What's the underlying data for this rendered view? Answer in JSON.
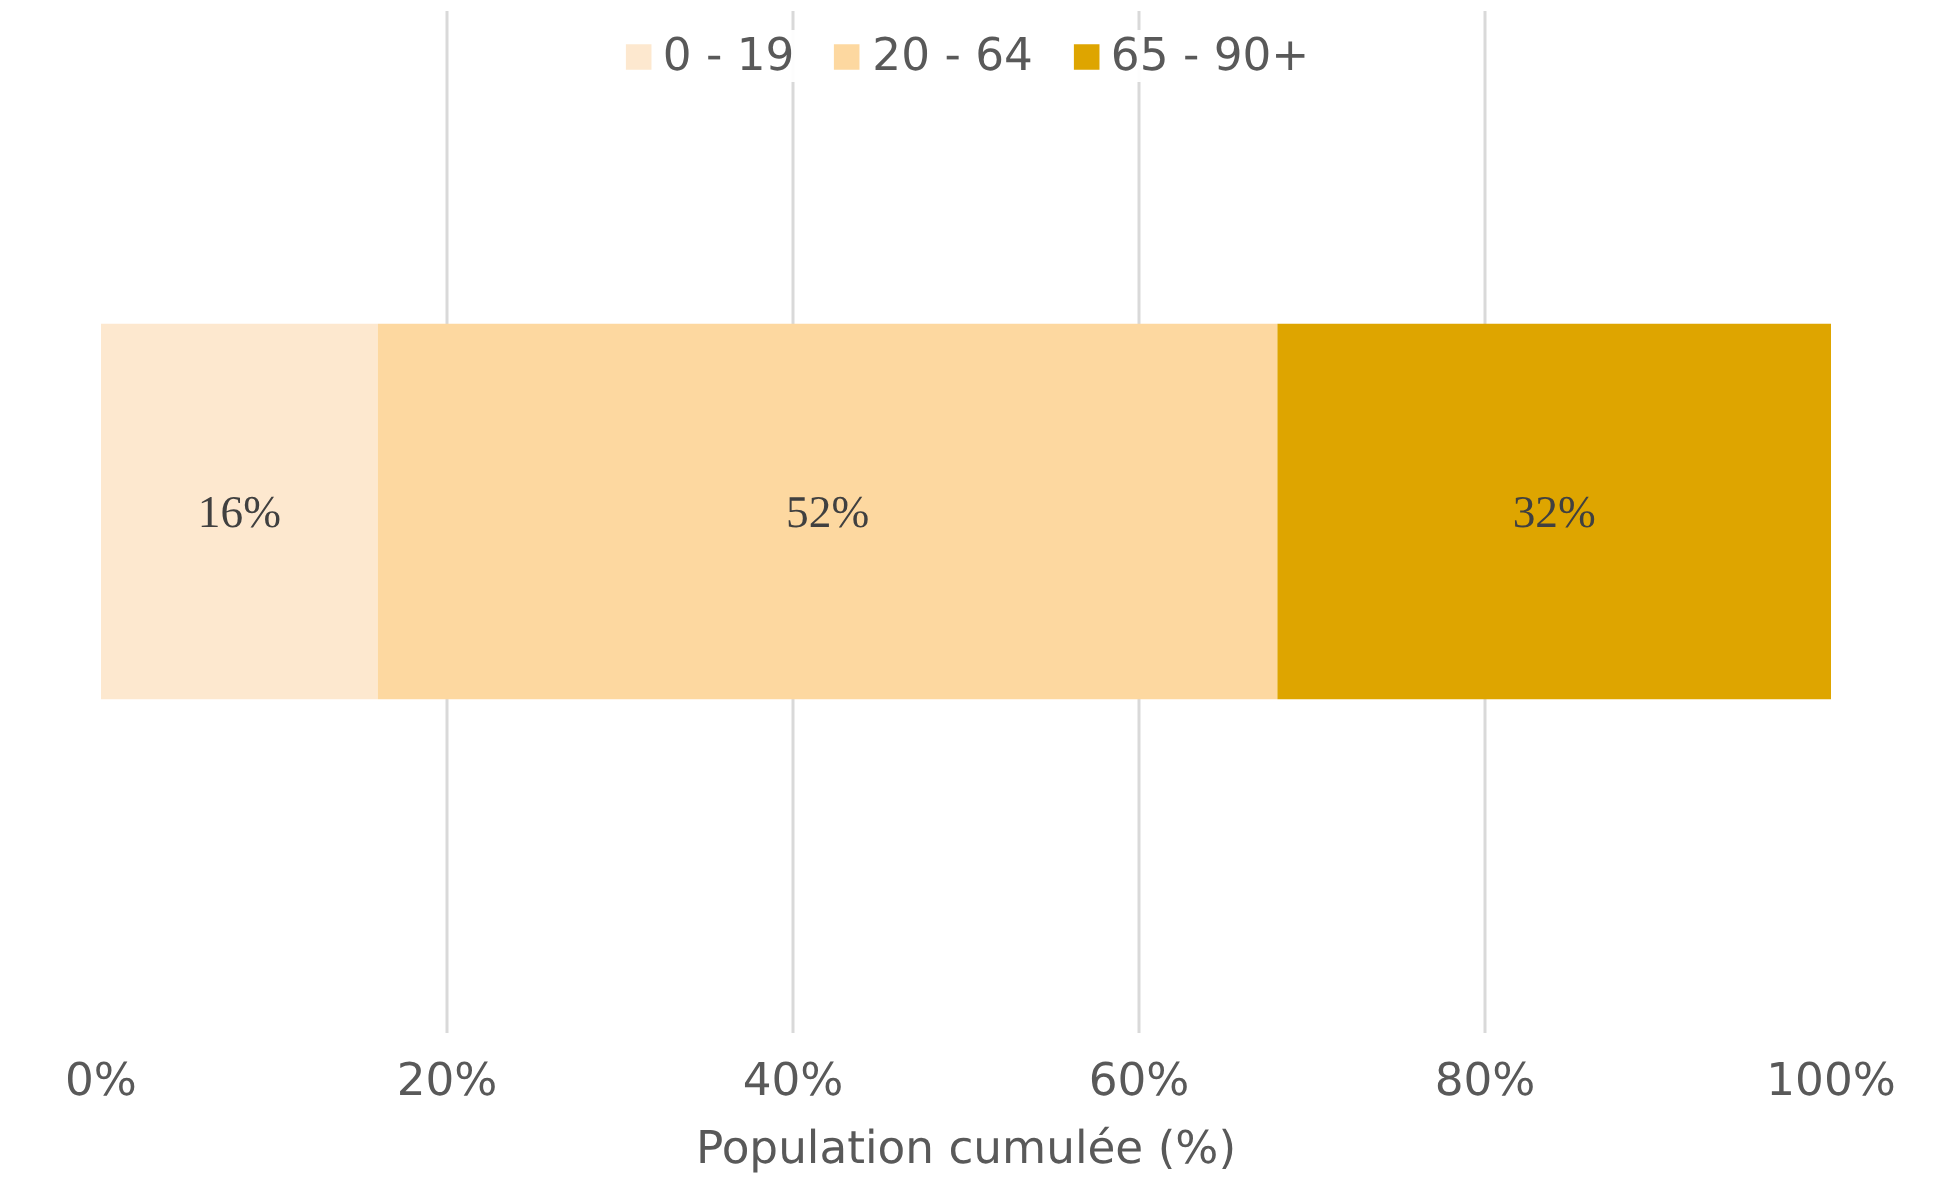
{
  "chart_data": {
    "type": "bar",
    "orientation": "horizontal",
    "stacked": true,
    "categories": [
      null
    ],
    "xlabel": "Population cumulée (%)",
    "series": [
      {
        "name": "0 - 19",
        "color": "#fde8cf",
        "values": [
          16
        ],
        "value_labels": [
          "16%"
        ]
      },
      {
        "name": "20 - 64",
        "color": "#fdd8a0",
        "values": [
          52
        ],
        "value_labels": [
          "52%"
        ]
      },
      {
        "name": "65 - 90+",
        "color": "#dea500",
        "values": [
          32
        ],
        "value_labels": [
          "32%"
        ]
      }
    ],
    "xlim": [
      0,
      100
    ],
    "xticks": [
      {
        "value": 0,
        "label": "0%"
      },
      {
        "value": 20,
        "label": "20%"
      },
      {
        "value": 40,
        "label": "40%"
      },
      {
        "value": 60,
        "label": "60%"
      },
      {
        "value": 80,
        "label": "80%"
      },
      {
        "value": 100,
        "label": "100%"
      }
    ],
    "grid": "x",
    "legend": "top"
  }
}
